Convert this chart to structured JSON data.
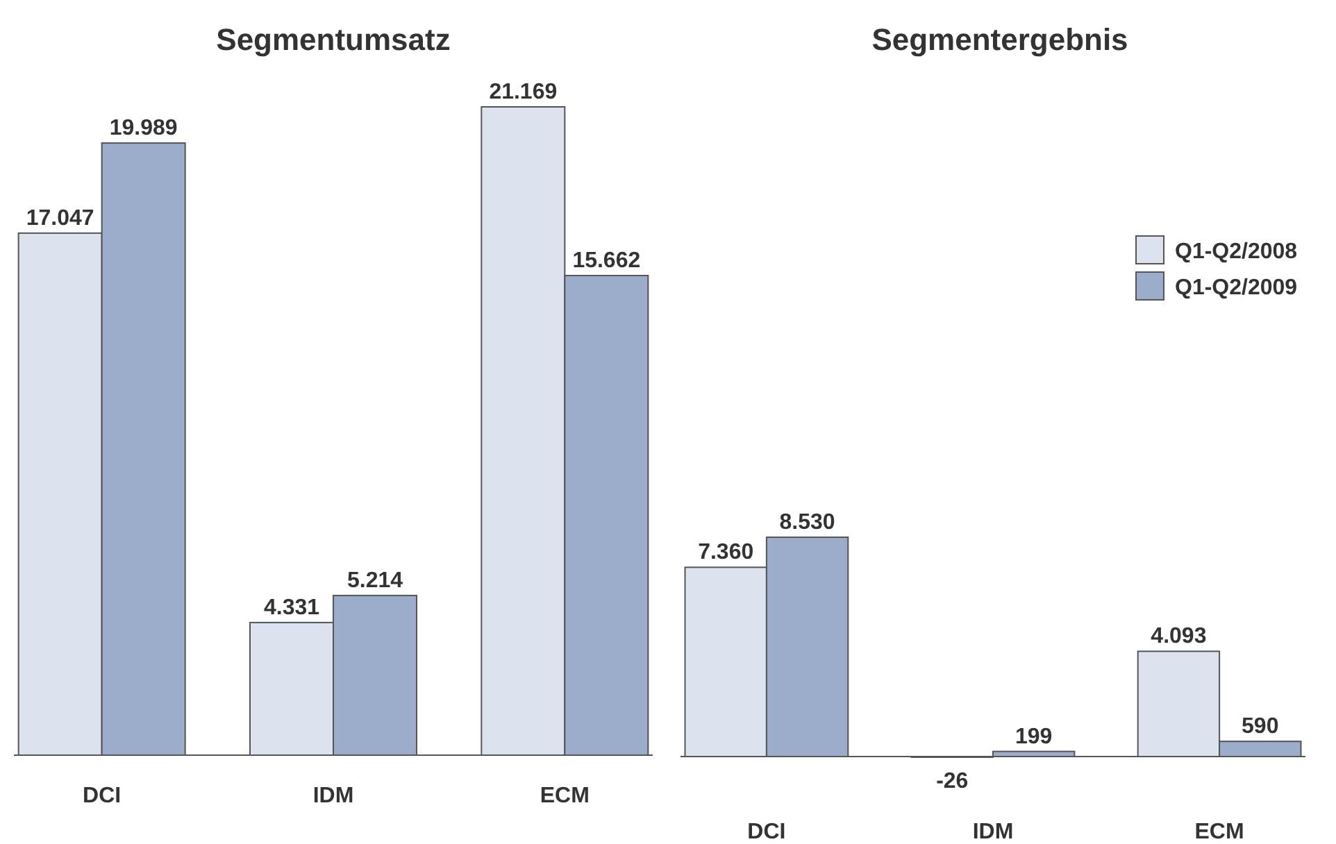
{
  "chart_data": [
    {
      "type": "bar",
      "title": "Segmentumsatz",
      "categories": [
        "DCI",
        "IDM",
        "ECM"
      ],
      "series": [
        {
          "color": "#dde3ee",
          "values": [
            17047,
            4331,
            21169
          ],
          "value_labels": [
            "17.047",
            "4.331",
            "21.169"
          ]
        },
        {
          "color": "#9badcb",
          "values": [
            19989,
            5214,
            15662
          ],
          "value_labels": [
            "19.989",
            "5.214",
            "15.662"
          ]
        }
      ]
    },
    {
      "type": "bar",
      "title": "Segmentergebnis",
      "categories": [
        "DCI",
        "IDM",
        "ECM"
      ],
      "legend": "right",
      "series": [
        {
          "name": "Q1-Q2/2008",
          "color": "#dde3ee",
          "values": [
            7360,
            -26,
            4093
          ],
          "value_labels": [
            "7.360",
            "-26",
            "4.093"
          ]
        },
        {
          "name": "Q1-Q2/2009",
          "color": "#9badcb",
          "values": [
            8530,
            199,
            590
          ],
          "value_labels": [
            "8.530",
            "199",
            "590"
          ]
        }
      ]
    }
  ]
}
